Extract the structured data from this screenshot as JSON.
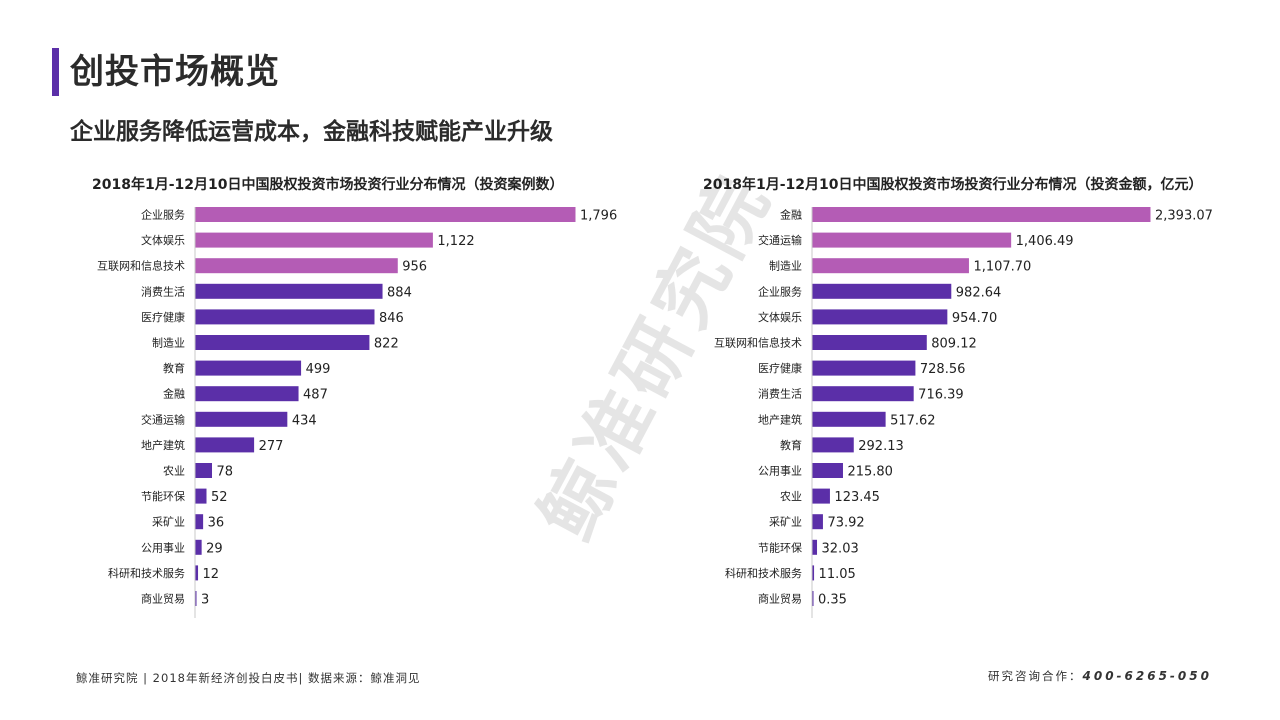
{
  "header": {
    "title": "创投市场概览",
    "subtitle": "企业服务降低运营成本，金融科技赋能产业升级"
  },
  "watermark": "鲸准研究院",
  "colors": {
    "accent": "#5b2fa8",
    "highlight": "#b45cb5",
    "bar": "#5b2fa8"
  },
  "footer": {
    "left": "鲸准研究院 | 2018年新经济创投白皮书| 数据来源：鲸准洞见",
    "contact_label": "研究咨询合作：",
    "phone": "400-6265-050"
  },
  "chart_data": [
    {
      "type": "bar",
      "orientation": "horizontal",
      "title": "2018年1月-12月10日中国股权投资市场投资行业分布情况（投资案例数）",
      "categories": [
        "企业服务",
        "文体娱乐",
        "互联网和信息技术",
        "消费生活",
        "医疗健康",
        "制造业",
        "教育",
        "金融",
        "交通运输",
        "地产建筑",
        "农业",
        "节能环保",
        "采矿业",
        "公用事业",
        "科研和技术服务",
        "商业贸易"
      ],
      "values": [
        1796,
        1122,
        956,
        884,
        846,
        822,
        499,
        487,
        434,
        277,
        78,
        52,
        36,
        29,
        12,
        3
      ],
      "labels": [
        "1,796",
        "1,122",
        "956",
        "884",
        "846",
        "822",
        "499",
        "487",
        "434",
        "277",
        "78",
        "52",
        "36",
        "29",
        "12",
        "3"
      ],
      "highlight_top": 3,
      "xlim": [
        0,
        1796
      ]
    },
    {
      "type": "bar",
      "orientation": "horizontal",
      "title": "2018年1月-12月10日中国股权投资市场投资行业分布情况（投资金额，亿元）",
      "categories": [
        "金融",
        "交通运输",
        "制造业",
        "企业服务",
        "文体娱乐",
        "互联网和信息技术",
        "医疗健康",
        "消费生活",
        "地产建筑",
        "教育",
        "公用事业",
        "农业",
        "采矿业",
        "节能环保",
        "科研和技术服务",
        "商业贸易"
      ],
      "values": [
        2393.07,
        1406.49,
        1107.7,
        982.64,
        954.7,
        809.12,
        728.56,
        716.39,
        517.62,
        292.13,
        215.8,
        123.45,
        73.92,
        32.03,
        11.05,
        0.35
      ],
      "labels": [
        "2,393.07",
        "1,406.49",
        "1,107.70",
        "982.64",
        "954.70",
        "809.12",
        "728.56",
        "716.39",
        "517.62",
        "292.13",
        "215.80",
        "123.45",
        "73.92",
        "32.03",
        "11.05",
        "0.35"
      ],
      "highlight_top": 3,
      "xlim": [
        0,
        2393.07
      ]
    }
  ]
}
